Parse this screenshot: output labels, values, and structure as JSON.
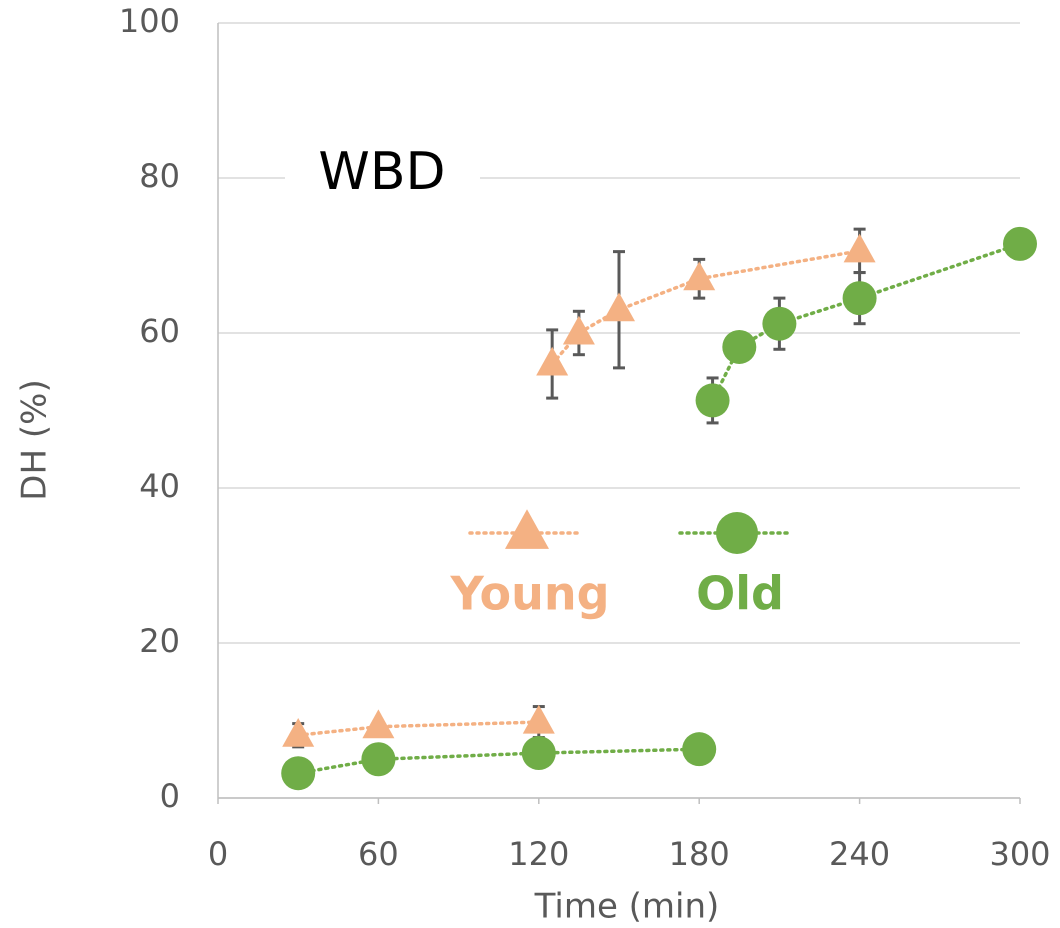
{
  "chart_data": {
    "type": "scatter",
    "title": "WBD",
    "x_label": "Time (min)",
    "y_label": "DH (%)",
    "xlim": [
      0,
      300
    ],
    "xticks": [
      0,
      60,
      120,
      180,
      240,
      300
    ],
    "ylim": [
      0,
      100
    ],
    "yticks": [
      0,
      20,
      40,
      60,
      80,
      100
    ],
    "grid": true,
    "series": [
      {
        "name": "Young",
        "color": "#f4b183",
        "marker": "triangle",
        "x": [
          30,
          60,
          120,
          null,
          125,
          135,
          150,
          180,
          240
        ],
        "values": [
          8.1,
          9.2,
          9.8,
          null,
          56,
          60,
          63,
          67,
          70.6
        ],
        "errors": [
          1.5,
          null,
          2,
          null,
          4.4,
          2.8,
          7.5,
          2.5,
          2.8
        ]
      },
      {
        "name": "Old",
        "color": "#70ad47",
        "marker": "circle",
        "x": [
          30,
          60,
          120,
          180,
          null,
          185,
          195,
          210,
          240,
          300
        ],
        "values": [
          3.2,
          5,
          5.8,
          6.3,
          null,
          51.3,
          58.2,
          61.2,
          64.5,
          71.5
        ],
        "errors": [
          null,
          null,
          null,
          null,
          null,
          2.9,
          null,
          3.3,
          3.3,
          null
        ]
      }
    ]
  }
}
